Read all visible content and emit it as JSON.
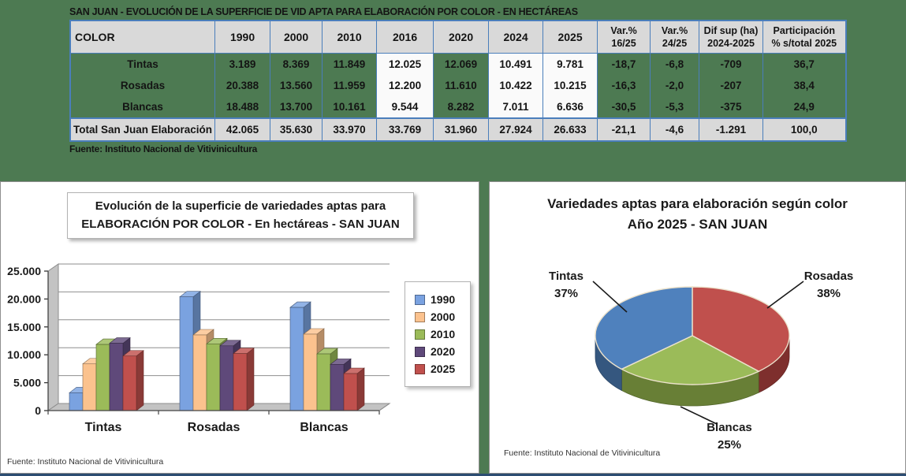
{
  "page": {
    "background": "#4d7a52",
    "bottom_bar_color": "#2c4d72",
    "table_border_color": "#4a7ebb",
    "negative_color": "#ea0000"
  },
  "table": {
    "title": "SAN JUAN - EVOLUCIÓN DE LA SUPERFICIE DE VID APTA PARA ELABORACIÓN POR COLOR - EN HECTÁREAS",
    "columns": [
      "COLOR",
      "1990",
      "2000",
      "2010",
      "2016",
      "2020",
      "2024",
      "2025",
      "Var.%\n16/25",
      "Var.%\n24/25",
      "Dif sup (ha)\n2024-2025",
      "Participación\n% s/total 2025"
    ],
    "highlight_value_indexes": [
      3,
      5,
      6
    ],
    "rows": [
      {
        "label": "Tintas",
        "values": [
          "3.189",
          "8.369",
          "11.849",
          "12.025",
          "12.069",
          "10.491",
          "9.781",
          "-18,7",
          "-6,8",
          "-709",
          "36,7"
        ]
      },
      {
        "label": "Rosadas",
        "values": [
          "20.388",
          "13.560",
          "11.959",
          "12.200",
          "11.610",
          "10.422",
          "10.215",
          "-16,3",
          "-2,0",
          "-207",
          "38,4"
        ]
      },
      {
        "label": "Blancas",
        "values": [
          "18.488",
          "13.700",
          "10.161",
          "9.544",
          "8.282",
          "7.011",
          "6.636",
          "-30,5",
          "-5,3",
          "-375",
          "24,9"
        ]
      }
    ],
    "total_row": {
      "label": "Total San Juan Elaboración",
      "values": [
        "42.065",
        "35.630",
        "33.970",
        "33.769",
        "31.960",
        "27.924",
        "26.633",
        "-21,1",
        "-4,6",
        "-1.291",
        "100,0"
      ]
    },
    "source": "Fuente: Instituto Nacional de Vitivinicultura"
  },
  "chart_data": [
    {
      "type": "bar",
      "title": "Evolución de la superficie de variedades aptas para ELABORACIÓN POR COLOR - En hectáreas - SAN JUAN",
      "title_lines": [
        "Evolución de la superficie de variedades aptas para",
        "ELABORACIÓN POR COLOR - En hectáreas - SAN JUAN"
      ],
      "categories": [
        "Tintas",
        "Rosadas",
        "Blancas"
      ],
      "series": [
        {
          "name": "1990",
          "color": "#7aa2e0",
          "values": [
            3189,
            20388,
            18488
          ]
        },
        {
          "name": "2000",
          "color": "#fbc28e",
          "values": [
            8369,
            13560,
            13700
          ]
        },
        {
          "name": "2010",
          "color": "#9bbb59",
          "values": [
            11849,
            11959,
            10161
          ]
        },
        {
          "name": "2020",
          "color": "#5f497a",
          "values": [
            12069,
            11610,
            8282
          ]
        },
        {
          "name": "2025",
          "color": "#c0504d",
          "values": [
            9781,
            10215,
            6636
          ]
        }
      ],
      "ylim": [
        0,
        25000
      ],
      "ytick_step": 5000,
      "ytick_labels": [
        "0",
        "5.000",
        "10.000",
        "15.000",
        "20.000",
        "25.000"
      ],
      "grid": true,
      "legend_position": "right",
      "source": "Fuente: Instituto Nacional de Vitivinicultura"
    },
    {
      "type": "pie",
      "title": "Variedades aptas para elaboración según color Año 2025 - SAN JUAN",
      "title_lines": [
        "Variedades aptas para elaboración según color",
        "Año 2025 - SAN JUAN"
      ],
      "slices": [
        {
          "label": "Rosadas",
          "pct": 38,
          "pct_label": "38%",
          "color": "#c0504d",
          "dark": "#7e2f2d"
        },
        {
          "label": "Blancas",
          "pct": 25,
          "pct_label": "25%",
          "color": "#9bbb59",
          "dark": "#687f36"
        },
        {
          "label": "Tintas",
          "pct": 37,
          "pct_label": "37%",
          "color": "#4f81bd",
          "dark": "#35577f"
        }
      ],
      "start_angle_deg": -90,
      "direction": "clockwise",
      "source": "Fuente: Instituto Nacional de Vitivinicultura"
    }
  ]
}
